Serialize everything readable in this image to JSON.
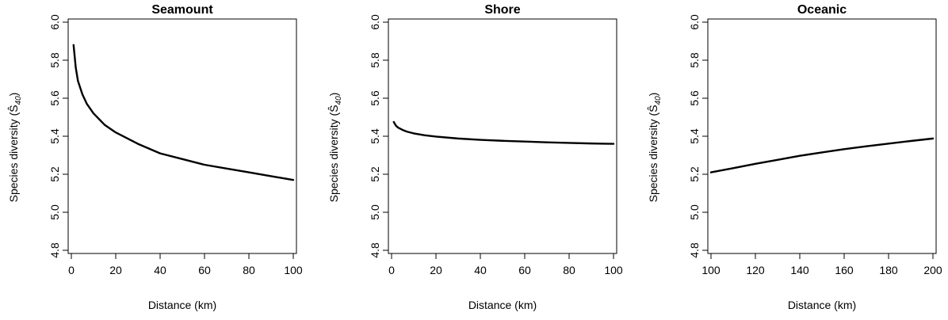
{
  "chart_data": [
    {
      "type": "line",
      "title": "Seamount",
      "xlabel": "Distance (km)",
      "ylabel": "Species diversity (Ŝ",
      "ylabel_subscript": "40",
      "ylabel_close": ")",
      "xlim": [
        1,
        100
      ],
      "ylim": [
        4.8,
        6.0
      ],
      "xticks": [
        "0",
        "20",
        "40",
        "60",
        "80",
        "100"
      ],
      "yticks": [
        "4.8",
        "5.0",
        "5.2",
        "5.4",
        "5.6",
        "5.8",
        "6.0"
      ],
      "grid": false,
      "x": [
        1,
        2,
        3,
        5,
        7,
        10,
        15,
        20,
        30,
        40,
        50,
        60,
        70,
        80,
        90,
        100
      ],
      "y": [
        5.88,
        5.76,
        5.69,
        5.62,
        5.57,
        5.52,
        5.46,
        5.42,
        5.36,
        5.31,
        5.28,
        5.25,
        5.23,
        5.21,
        5.19,
        5.17
      ]
    },
    {
      "type": "line",
      "title": "Shore",
      "xlabel": "Distance (km)",
      "ylabel": "Species diversity (Ŝ",
      "ylabel_subscript": "40",
      "ylabel_close": ")",
      "xlim": [
        1,
        100
      ],
      "ylim": [
        4.8,
        6.0
      ],
      "xticks": [
        "0",
        "20",
        "40",
        "60",
        "80",
        "100"
      ],
      "yticks": [
        "4.8",
        "5.0",
        "5.2",
        "5.4",
        "5.6",
        "5.8",
        "6.0"
      ],
      "grid": false,
      "x": [
        1,
        2,
        3,
        5,
        7,
        10,
        15,
        20,
        30,
        40,
        50,
        60,
        70,
        80,
        90,
        100
      ],
      "y": [
        5.475,
        5.455,
        5.445,
        5.433,
        5.424,
        5.415,
        5.405,
        5.398,
        5.388,
        5.381,
        5.376,
        5.372,
        5.368,
        5.365,
        5.362,
        5.36
      ]
    },
    {
      "type": "line",
      "title": "Oceanic",
      "xlabel": "Distance (km)",
      "ylabel": "Species diversity (Ŝ",
      "ylabel_subscript": "40",
      "ylabel_close": ")",
      "xlim": [
        100,
        200
      ],
      "ylim": [
        4.8,
        6.0
      ],
      "xticks": [
        "100",
        "120",
        "140",
        "160",
        "180",
        "200"
      ],
      "yticks": [
        "4.8",
        "5.0",
        "5.2",
        "5.4",
        "5.6",
        "5.8",
        "6.0"
      ],
      "grid": false,
      "x": [
        100,
        110,
        120,
        130,
        140,
        150,
        160,
        170,
        180,
        190,
        200
      ],
      "y": [
        5.21,
        5.232,
        5.255,
        5.276,
        5.297,
        5.315,
        5.332,
        5.347,
        5.361,
        5.375,
        5.388
      ]
    }
  ]
}
